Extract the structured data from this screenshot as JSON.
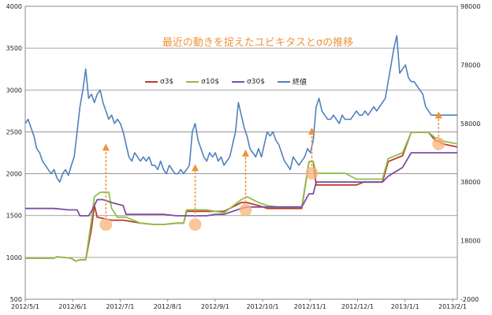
{
  "chart_data": {
    "type": "line",
    "title": "最近の動きを捉えたユビキタスとσの推移",
    "x_ticks": [
      "2012/5/1",
      "2012/6/1",
      "2012/7/1",
      "2012/8/1",
      "2012/9/1",
      "2012/10/1",
      "2012/11/1",
      "2012/12/1",
      "2013/1/1",
      "2013/2/1"
    ],
    "y_left_ticks": [
      500,
      1000,
      1500,
      2000,
      2500,
      3000,
      3500,
      4000
    ],
    "y_right_ticks": [
      -2000,
      18000,
      38000,
      58000,
      78000,
      98000
    ],
    "ylim_left": [
      500,
      4000
    ],
    "ylim_right": [
      -2000,
      98000
    ],
    "grid": true,
    "legend_position": "top-left",
    "x_range_days": [
      0,
      300
    ],
    "series": [
      {
        "name": "σ3$",
        "color": "#c0392b",
        "axis": "right",
        "x": [
          0,
          20,
          22,
          32,
          35,
          38,
          42,
          46,
          48,
          50,
          55,
          60,
          68,
          80,
          90,
          96,
          105,
          110,
          112,
          115,
          126,
          132,
          138,
          150,
          154,
          162,
          168,
          175,
          185,
          192,
          197,
          200,
          202,
          216,
          218,
          222,
          230,
          235,
          248,
          252,
          262,
          268,
          280,
          285,
          287,
          290,
          300
        ],
        "y": [
          12000,
          12000,
          12500,
          12000,
          11000,
          11500,
          11500,
          22000,
          30000,
          26000,
          25500,
          25000,
          25000,
          24000,
          23500,
          23500,
          24000,
          24000,
          28000,
          28000,
          28000,
          28000,
          28000,
          31000,
          31000,
          30000,
          29000,
          29000,
          29000,
          29000,
          45000,
          45000,
          37000,
          37000,
          37000,
          37000,
          37000,
          38000,
          38000,
          45000,
          47000,
          55000,
          55000,
          52000,
          52000,
          51000,
          50000
        ]
      },
      {
        "name": "σ10$",
        "color": "#8fbf4a",
        "axis": "right",
        "x": [
          0,
          20,
          22,
          32,
          35,
          38,
          42,
          46,
          48,
          52,
          58,
          60,
          64,
          70,
          80,
          90,
          96,
          105,
          110,
          112,
          126,
          132,
          138,
          150,
          154,
          162,
          168,
          175,
          185,
          192,
          197,
          200,
          202,
          216,
          218,
          222,
          230,
          235,
          248,
          252,
          262,
          268,
          280,
          285,
          287,
          290,
          300
        ],
        "y": [
          12000,
          12000,
          12500,
          12000,
          11000,
          11500,
          11500,
          25000,
          33000,
          34500,
          34500,
          29000,
          26000,
          26000,
          24000,
          23500,
          23500,
          24000,
          24000,
          28500,
          28500,
          28000,
          27500,
          32000,
          33000,
          31000,
          30000,
          29500,
          29500,
          29500,
          45000,
          45000,
          41000,
          41000,
          41000,
          41000,
          39000,
          39000,
          39000,
          46000,
          48000,
          55000,
          55000,
          53000,
          53000,
          52000,
          51000
        ]
      },
      {
        "name": "σ30$",
        "color": "#7b4fa0",
        "axis": "right",
        "x": [
          0,
          20,
          30,
          36,
          38,
          44,
          46,
          50,
          54,
          60,
          68,
          70,
          80,
          90,
          96,
          105,
          110,
          112,
          126,
          132,
          138,
          150,
          154,
          162,
          168,
          175,
          185,
          192,
          197,
          200,
          202,
          216,
          218,
          222,
          230,
          235,
          248,
          252,
          262,
          268,
          280,
          285,
          300
        ],
        "y": [
          29000,
          29000,
          28500,
          28500,
          26500,
          26500,
          28000,
          32000,
          32000,
          31000,
          30000,
          27000,
          27000,
          27000,
          27000,
          26500,
          26500,
          26500,
          26500,
          27000,
          27000,
          29000,
          29500,
          29500,
          29500,
          29500,
          29500,
          29500,
          34000,
          34000,
          38000,
          38000,
          38000,
          38000,
          38000,
          38000,
          38000,
          40000,
          43000,
          48000,
          48000,
          48000,
          48000
        ]
      },
      {
        "name": "終値",
        "color": "#4f81bd",
        "axis": "left",
        "x": [
          0,
          2,
          4,
          6,
          8,
          10,
          12,
          14,
          16,
          18,
          20,
          22,
          24,
          26,
          28,
          30,
          32,
          34,
          36,
          38,
          40,
          42,
          44,
          46,
          48,
          50,
          52,
          54,
          56,
          58,
          60,
          62,
          64,
          66,
          68,
          70,
          72,
          74,
          76,
          78,
          80,
          82,
          84,
          86,
          88,
          90,
          92,
          94,
          96,
          98,
          100,
          102,
          104,
          106,
          108,
          110,
          112,
          114,
          116,
          118,
          120,
          122,
          124,
          126,
          128,
          130,
          132,
          134,
          136,
          138,
          140,
          142,
          144,
          146,
          148,
          150,
          152,
          154,
          156,
          158,
          160,
          162,
          164,
          166,
          168,
          170,
          172,
          174,
          176,
          178,
          180,
          182,
          184,
          186,
          188,
          190,
          192,
          194,
          196,
          198,
          200,
          202,
          204,
          206,
          208,
          210,
          212,
          214,
          216,
          218,
          220,
          222,
          224,
          226,
          228,
          230,
          232,
          234,
          236,
          238,
          240,
          242,
          244,
          246,
          248,
          250,
          252,
          254,
          256,
          258,
          260,
          262,
          264,
          266,
          268,
          270,
          272,
          274,
          276,
          278,
          280,
          282,
          284,
          286,
          288,
          290,
          292,
          294,
          296,
          298,
          300
        ],
        "y": [
          2600,
          2650,
          2550,
          2450,
          2300,
          2250,
          2150,
          2100,
          2050,
          2000,
          2050,
          1950,
          1900,
          2000,
          2050,
          1980,
          2100,
          2200,
          2500,
          2800,
          3000,
          3250,
          2900,
          2950,
          2850,
          2950,
          3000,
          2850,
          2750,
          2650,
          2700,
          2600,
          2650,
          2600,
          2500,
          2350,
          2200,
          2150,
          2250,
          2200,
          2150,
          2200,
          2150,
          2200,
          2100,
          2100,
          2050,
          2150,
          2050,
          2000,
          2100,
          2050,
          2000,
          2000,
          2050,
          2000,
          2050,
          2100,
          2500,
          2600,
          2400,
          2300,
          2200,
          2150,
          2250,
          2200,
          2250,
          2150,
          2200,
          2100,
          2150,
          2200,
          2350,
          2500,
          2850,
          2700,
          2550,
          2450,
          2300,
          2250,
          2200,
          2300,
          2200,
          2350,
          2500,
          2450,
          2500,
          2400,
          2350,
          2250,
          2150,
          2100,
          2050,
          2200,
          2150,
          2100,
          2150,
          2200,
          2300,
          2250,
          2400,
          2800,
          2900,
          2750,
          2700,
          2650,
          2650,
          2700,
          2650,
          2600,
          2700,
          2650,
          2650,
          2650,
          2700,
          2750,
          2700,
          2700,
          2750,
          2700,
          2750,
          2800,
          2750,
          2800,
          2850,
          2900,
          3100,
          3300,
          3500,
          3650,
          3200,
          3250,
          3300,
          3150,
          3100,
          3100,
          3050,
          3000,
          2950,
          2800,
          2750,
          2700,
          2700,
          2700,
          2700,
          2700,
          2700,
          2700,
          2700,
          2700,
          2700
        ]
      }
    ],
    "annotations": [
      {
        "type": "circle",
        "x": 56,
        "y_right": 23500
      },
      {
        "type": "circle",
        "x": 118,
        "y_right": 23500
      },
      {
        "type": "circle",
        "x": 153,
        "y_right": 28500
      },
      {
        "type": "circle",
        "x": 199,
        "y_right": 41000
      },
      {
        "type": "circle",
        "x": 287,
        "y_right": 51000
      },
      {
        "type": "arrow",
        "x": 56,
        "from_right": 23500,
        "to_right": 51000
      },
      {
        "type": "arrow",
        "x": 118,
        "from_right": 23500,
        "to_right": 44000
      },
      {
        "type": "arrow",
        "x": 153,
        "from_right": 28500,
        "to_right": 49000
      },
      {
        "type": "arrow",
        "x": 199,
        "from_right": 41000,
        "to_right": 56500
      },
      {
        "type": "arrow",
        "x": 287,
        "from_right": 51000,
        "to_right": 62000
      }
    ]
  }
}
